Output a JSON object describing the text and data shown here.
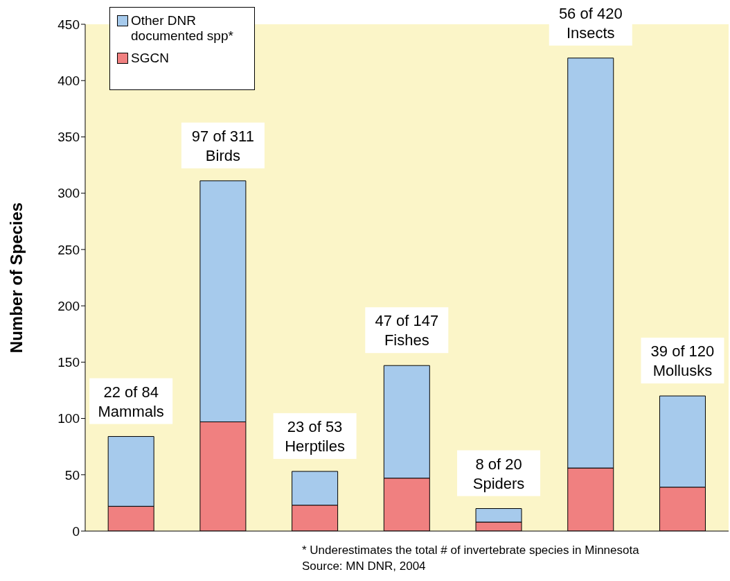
{
  "chart_data": {
    "type": "bar",
    "stacked": true,
    "ylabel": "Number of Species",
    "categories": [
      null,
      null,
      null,
      null,
      null,
      null,
      null
    ],
    "series": [
      {
        "name": "SGCN",
        "color": "#f08080",
        "values": [
          22,
          97,
          23,
          47,
          8,
          56,
          39
        ]
      },
      {
        "name": "Other DNR documented spp*",
        "color": "#a6caec",
        "values": [
          62,
          214,
          30,
          100,
          12,
          364,
          81
        ]
      }
    ],
    "totals": [
      "22 of 84\nMammals",
      "97 of 311\nBirds",
      "23 of 53\nHerptiles",
      "47 of 147\nFishes",
      "8 of 20\nSpiders",
      "56 of 420\nInsects",
      "39 of 120\nMollusks"
    ],
    "ylim": [
      0,
      450
    ],
    "yticks": [
      0,
      50,
      100,
      150,
      200,
      250,
      300,
      350,
      400,
      450
    ],
    "grid": false,
    "legend": "top left",
    "annotations": [
      "* Underestimates the total # of invertebrate species in Minnesota",
      "Source: MN DNR, 2004"
    ]
  }
}
